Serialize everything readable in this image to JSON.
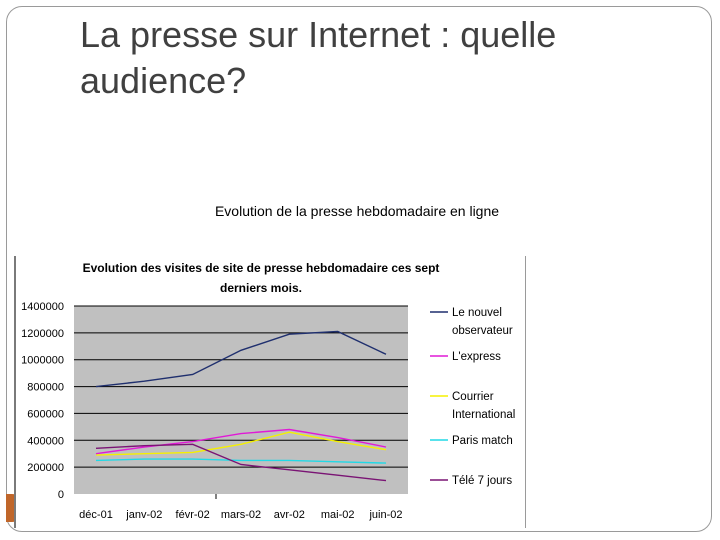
{
  "slide": {
    "title": "La presse sur Internet : quelle audience?",
    "subtitle": "Evolution de la presse hebdomadaire en ligne"
  },
  "chart_data": {
    "type": "line",
    "title_line1": "Evolution des visites de site de presse hebdomadaire ces sept",
    "title_line2": "derniers mois.",
    "categories": [
      "déc-01",
      "janv-02",
      "févr-02",
      "mars-02",
      "avr-02",
      "mai-02",
      "juin-02"
    ],
    "ylim": [
      0,
      1400000
    ],
    "yticks": [
      "1400000",
      "1200000",
      "1000000",
      "800000",
      "600000",
      "400000",
      "200000",
      "0"
    ],
    "grid": true,
    "legend_position": "right",
    "series": [
      {
        "name": "Le nouvel observateur",
        "legend_lines": [
          "Le nouvel",
          "observateur"
        ],
        "color": "#1f2f6e",
        "values": [
          800000,
          840000,
          890000,
          1070000,
          1190000,
          1210000,
          1040000
        ]
      },
      {
        "name": "L'express",
        "legend_lines": [
          "L'express"
        ],
        "color": "#e01ad6",
        "values": [
          300000,
          350000,
          390000,
          450000,
          480000,
          420000,
          350000
        ]
      },
      {
        "name": "Courrier International",
        "legend_lines": [
          "Courrier",
          "International"
        ],
        "color": "#f5f000",
        "values": [
          290000,
          300000,
          310000,
          370000,
          460000,
          390000,
          330000
        ]
      },
      {
        "name": "Paris match",
        "legend_lines": [
          "Paris match"
        ],
        "color": "#21d9e6",
        "values": [
          250000,
          260000,
          260000,
          250000,
          250000,
          240000,
          230000
        ]
      },
      {
        "name": "Télé 7 jours",
        "legend_lines": [
          "Télé 7 jours"
        ],
        "color": "#7a1474",
        "values": [
          340000,
          360000,
          370000,
          220000,
          180000,
          140000,
          100000
        ]
      }
    ]
  }
}
